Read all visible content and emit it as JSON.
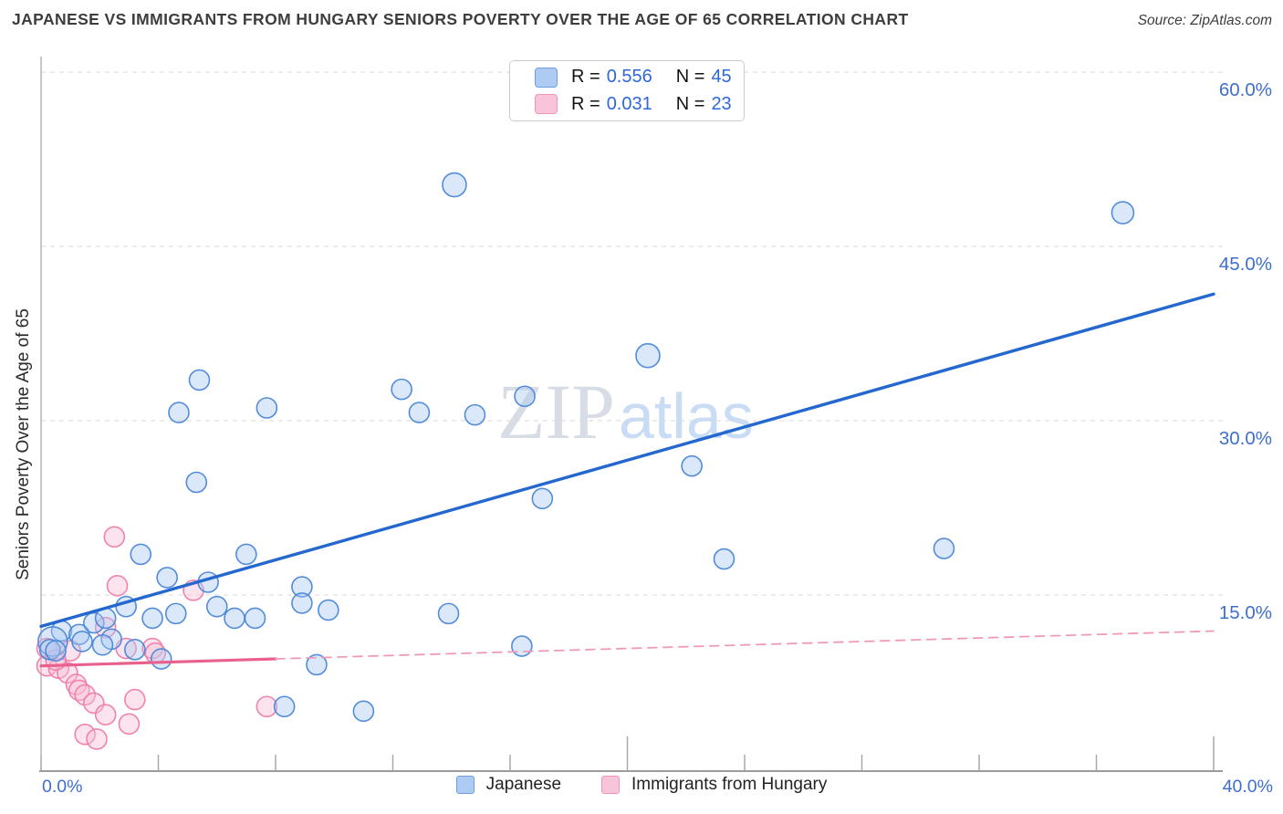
{
  "header": {
    "title": "JAPANESE VS IMMIGRANTS FROM HUNGARY SENIORS POVERTY OVER THE AGE OF 65 CORRELATION CHART",
    "source": "Source: ZipAtlas.com"
  },
  "legend_box": {
    "rows": [
      {
        "r_label": "R =",
        "r_value": "0.556",
        "n_label": "N =",
        "n_value": "45"
      },
      {
        "r_label": "R =",
        "r_value": "0.031",
        "n_label": "N =",
        "n_value": "23"
      }
    ]
  },
  "watermark": {
    "part1": "ZIP",
    "part2": "atlas"
  },
  "colors": {
    "title": "#3d3d3d",
    "axis_label_blue": "#3f6fce",
    "value_blue": "#2f66d8",
    "grid": "#dadada",
    "axis_line": "#9c9c9c",
    "tick": "#a8a8a8",
    "blue_fill": "#a9c9f1",
    "blue_stroke": "#4a86d8",
    "blue_swatch": "#aecbf3",
    "blue_swatch_border": "#6d9fe0",
    "pink_fill": "#f7bcd4",
    "pink_stroke": "#f07ca8",
    "pink_swatch": "#f9c4da",
    "pink_swatch_border": "#f095ba",
    "blue_trend": "#2468cf",
    "pink_trend": "#e8618c",
    "pink_trend_dash": "#ef9ab8",
    "watermark_zip": "#d8dce4",
    "watermark_atlas": "#c9dcf5"
  },
  "chart_data": {
    "type": "scatter",
    "title": "Japanese vs Immigrants from Hungary Seniors Poverty Over the Age of 65",
    "ylabel": "Seniors Poverty Over the Age of 65",
    "xlim": [
      0,
      40
    ],
    "ylim": [
      0,
      63
    ],
    "grid": "horizontal-dashed",
    "x_axis": {
      "left_label": "0.0%",
      "right_label": "40.0%",
      "tick_step": 4,
      "major_ticks": [
        20,
        40
      ]
    },
    "y_axis": {
      "side": "right",
      "ticks": [
        {
          "value": 60,
          "label": "60.0%"
        },
        {
          "value": 45,
          "label": "45.0%"
        },
        {
          "value": 30,
          "label": "30.0%"
        },
        {
          "value": 15,
          "label": "15.0%"
        }
      ]
    },
    "series": [
      {
        "name": "Japanese",
        "R": 0.556,
        "N": 45,
        "points": [
          [
            14.1,
            50.3,
            13
          ],
          [
            36.9,
            47.9,
            12
          ],
          [
            20.7,
            35.6,
            13
          ],
          [
            5.4,
            33.5
          ],
          [
            4.7,
            30.7
          ],
          [
            7.7,
            31.1
          ],
          [
            12.3,
            32.7
          ],
          [
            12.9,
            30.7
          ],
          [
            14.8,
            30.5
          ],
          [
            16.5,
            32.1
          ],
          [
            5.3,
            24.7
          ],
          [
            17.1,
            23.3
          ],
          [
            22.2,
            26.1
          ],
          [
            23.3,
            18.1
          ],
          [
            30.8,
            19.0
          ],
          [
            3.4,
            18.5
          ],
          [
            7.0,
            18.5
          ],
          [
            4.3,
            16.5
          ],
          [
            5.7,
            16.1
          ],
          [
            8.9,
            15.7
          ],
          [
            8.9,
            14.3
          ],
          [
            9.8,
            13.7
          ],
          [
            6.0,
            14.0
          ],
          [
            6.6,
            13.0
          ],
          [
            7.3,
            13.0
          ],
          [
            13.9,
            13.4
          ],
          [
            16.4,
            10.6
          ],
          [
            9.4,
            9.0
          ],
          [
            8.3,
            5.4
          ],
          [
            11.0,
            5.0
          ],
          [
            0.7,
            11.9
          ],
          [
            0.4,
            11.0,
            16
          ],
          [
            0.3,
            10.3
          ],
          [
            0.5,
            10.2
          ],
          [
            1.3,
            11.6
          ],
          [
            1.4,
            11.0
          ],
          [
            1.8,
            12.6
          ],
          [
            2.2,
            13.0
          ],
          [
            2.9,
            14.0
          ],
          [
            3.8,
            13.0
          ],
          [
            4.6,
            13.4
          ],
          [
            2.4,
            11.2
          ],
          [
            2.1,
            10.7
          ],
          [
            3.2,
            10.3
          ],
          [
            4.1,
            9.5
          ]
        ]
      },
      {
        "name": "Immigrants from Hungary",
        "R": 0.031,
        "N": 23,
        "points": [
          [
            2.5,
            20.0
          ],
          [
            2.6,
            15.8
          ],
          [
            5.2,
            15.4
          ],
          [
            2.2,
            12.2
          ],
          [
            0.2,
            10.4
          ],
          [
            1.0,
            10.2
          ],
          [
            2.9,
            10.4
          ],
          [
            3.8,
            10.4
          ],
          [
            3.9,
            10.0
          ],
          [
            0.2,
            8.9
          ],
          [
            0.6,
            8.7
          ],
          [
            0.9,
            8.3
          ],
          [
            0.5,
            9.4
          ],
          [
            1.2,
            7.3
          ],
          [
            1.3,
            6.8
          ],
          [
            1.5,
            6.4
          ],
          [
            1.8,
            5.7
          ],
          [
            3.2,
            6.0
          ],
          [
            2.2,
            4.7
          ],
          [
            3.0,
            3.9
          ],
          [
            1.5,
            3.0
          ],
          [
            1.9,
            2.6
          ],
          [
            7.7,
            5.4
          ]
        ]
      }
    ],
    "trend_lines": [
      {
        "series": "Japanese",
        "style": "solid",
        "x1": 0,
        "y1": 12.3,
        "x2": 40,
        "y2": 40.9
      },
      {
        "series": "Immigrants from Hungary",
        "style": "solid",
        "x1": 0,
        "y1": 8.9,
        "x2": 8,
        "y2": 9.5
      },
      {
        "series": "Immigrants from Hungary",
        "style": "dashed",
        "x1": 8,
        "y1": 9.5,
        "x2": 40,
        "y2": 11.9
      }
    ]
  }
}
